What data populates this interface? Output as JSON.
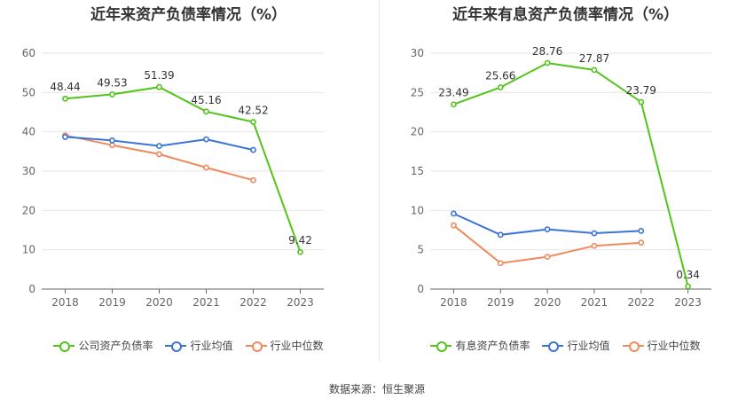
{
  "charts": [
    {
      "title": "近年来资产负债率情况（%）",
      "chart_data": {
        "type": "line",
        "title": "近年来资产负债率情况（%）",
        "categories": [
          "2018",
          "2019",
          "2020",
          "2021",
          "2022",
          "2023"
        ],
        "ylim": [
          0,
          60
        ],
        "yticks": [
          "0",
          "10",
          "20",
          "30",
          "40",
          "50",
          "60"
        ],
        "yticks_values": [
          0,
          10,
          20,
          30,
          40,
          50,
          60
        ],
        "grid": true,
        "legend_position": "bottom",
        "series": [
          {
            "name": "公司资产负债率",
            "color": "#52c41a",
            "values": [
              48.44,
              49.53,
              51.39,
              45.16,
              42.52,
              9.42
            ],
            "labels": [
              "48.44",
              "49.53",
              "51.39",
              "45.16",
              "42.52",
              "9.42"
            ]
          },
          {
            "name": "行业均值",
            "color": "#3b73d9",
            "values": [
              38.7,
              37.8,
              36.4,
              38.1,
              35.4,
              null
            ]
          },
          {
            "name": "行业中位数",
            "color": "#f08a5d",
            "values": [
              39.1,
              36.6,
              34.3,
              30.9,
              27.7,
              null
            ]
          }
        ]
      }
    },
    {
      "title": "近年来有息资产负债率情况（%）",
      "chart_data": {
        "type": "line",
        "title": "近年来有息资产负债率情况（%）",
        "categories": [
          "2018",
          "2019",
          "2020",
          "2021",
          "2022",
          "2023"
        ],
        "ylim": [
          0,
          30
        ],
        "yticks": [
          "0",
          "5",
          "10",
          "15",
          "20",
          "25",
          "30"
        ],
        "yticks_values": [
          0,
          5,
          10,
          15,
          20,
          25,
          30
        ],
        "grid": true,
        "legend_position": "bottom",
        "series": [
          {
            "name": "有息资产负债率",
            "color": "#52c41a",
            "values": [
              23.49,
              25.66,
              28.76,
              27.87,
              23.79,
              0.34
            ],
            "labels": [
              "23.49",
              "25.66",
              "28.76",
              "27.87",
              "23.79",
              "0.34"
            ]
          },
          {
            "name": "行业均值",
            "color": "#3b73d9",
            "values": [
              9.6,
              6.9,
              7.6,
              7.1,
              7.4,
              null
            ]
          },
          {
            "name": "行业中位数",
            "color": "#f08a5d",
            "values": [
              8.1,
              3.3,
              4.1,
              5.5,
              5.9,
              null
            ]
          }
        ]
      }
    }
  ],
  "source": "数据来源：恒生聚源"
}
